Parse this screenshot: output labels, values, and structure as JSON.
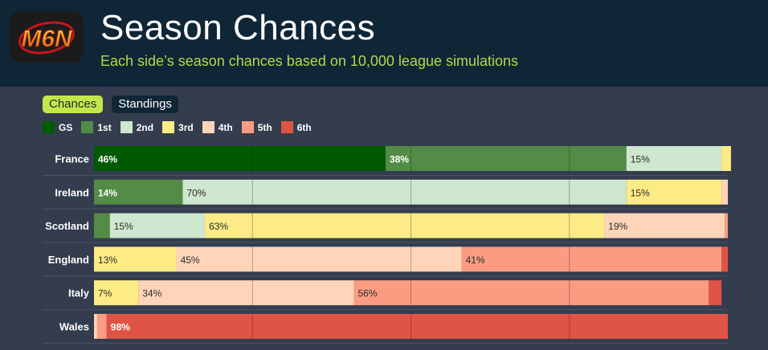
{
  "header": {
    "logo_text": "M6N",
    "title": "Season Chances",
    "subtitle": "Each side’s season chances based on 10,000 league simulations"
  },
  "tabs": [
    {
      "label": "Chances",
      "active": true
    },
    {
      "label": "Standings",
      "active": false
    }
  ],
  "legend": [
    {
      "label": "GS",
      "color": "#005a00"
    },
    {
      "label": "1st",
      "color": "#528c46"
    },
    {
      "label": "2nd",
      "color": "#cfe6cf"
    },
    {
      "label": "3rd",
      "color": "#fdeb85"
    },
    {
      "label": "4th",
      "color": "#ffd5b9"
    },
    {
      "label": "5th",
      "color": "#fb9c82"
    },
    {
      "label": "6th",
      "color": "#e05445"
    }
  ],
  "chart_data": {
    "type": "bar",
    "orientation": "horizontal-stacked",
    "categories": [
      "France",
      "Ireland",
      "Scotland",
      "England",
      "Italy",
      "Wales"
    ],
    "series": [
      {
        "name": "GS",
        "values": [
          46,
          0,
          0,
          0,
          0,
          0
        ]
      },
      {
        "name": "1st",
        "values": [
          38,
          14,
          2.5,
          0,
          0,
          0
        ]
      },
      {
        "name": "2nd",
        "values": [
          15,
          70,
          15,
          0,
          0,
          0
        ]
      },
      {
        "name": "3rd",
        "values": [
          1.5,
          15,
          63,
          13,
          7,
          0
        ]
      },
      {
        "name": "4th",
        "values": [
          0,
          1,
          19,
          45,
          34,
          0.5
        ]
      },
      {
        "name": "5th",
        "values": [
          0,
          0,
          0.5,
          41,
          56,
          1.5
        ]
      },
      {
        "name": "6th",
        "values": [
          0,
          0,
          0,
          1,
          2,
          98
        ]
      }
    ],
    "data_labels": [
      [
        {
          "series": 0,
          "text": "46%"
        },
        {
          "series": 1,
          "text": "38%"
        },
        {
          "series": 2,
          "text": "15%"
        }
      ],
      [
        {
          "series": 1,
          "text": "14%"
        },
        {
          "series": 2,
          "text": "70%"
        },
        {
          "series": 3,
          "text": "15%"
        }
      ],
      [
        {
          "series": 2,
          "text": "15%"
        },
        {
          "series": 3,
          "text": "63%"
        },
        {
          "series": 4,
          "text": "19%"
        }
      ],
      [
        {
          "series": 3,
          "text": "13%"
        },
        {
          "series": 4,
          "text": "45%"
        },
        {
          "series": 5,
          "text": "41%"
        }
      ],
      [
        {
          "series": 3,
          "text": "7%"
        },
        {
          "series": 4,
          "text": "34%"
        },
        {
          "series": 5,
          "text": "56%"
        }
      ],
      [
        {
          "series": 6,
          "text": "98%"
        }
      ]
    ],
    "xlim": [
      0,
      100
    ],
    "gridlines": [
      25,
      50,
      75
    ],
    "legend_position": "top-left"
  }
}
